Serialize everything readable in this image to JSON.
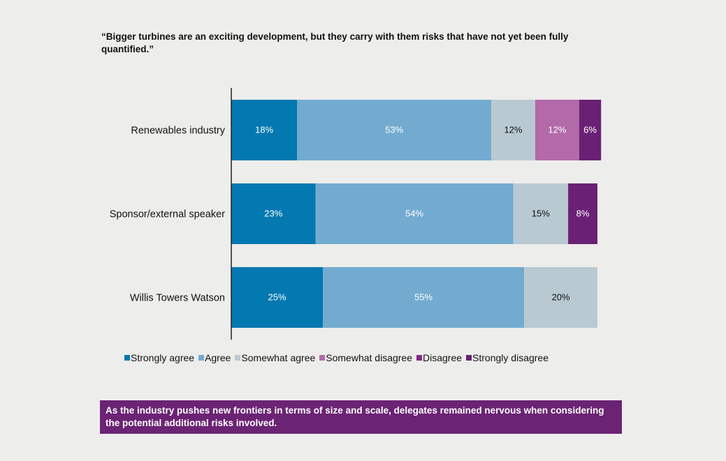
{
  "title": "“Bigger turbines are an exciting development, but they carry with them risks that have not yet been fully quantified.”",
  "caption": "As the industry pushes new frontiers in terms of size and scale, delegates remained nervous when considering the potential additional risks involved.",
  "chart_data": {
    "type": "bar",
    "orientation": "horizontal",
    "stacked": true,
    "title": "“Bigger turbines are an exciting development, but they carry with them risks that have not yet been fully quantified.”",
    "xlabel": "",
    "ylabel": "",
    "xlim": [
      0,
      100
    ],
    "grid": false,
    "legend_position": "bottom",
    "categories": [
      "Renewables industry",
      "Sponsor/external speaker",
      "Willis Towers Watson"
    ],
    "series": [
      {
        "name": "Strongly agree",
        "color": "#0478b0",
        "label_color": "#ffffff",
        "values": [
          18,
          23,
          25
        ]
      },
      {
        "name": "Agree",
        "color": "#73abd0",
        "label_color": "#ffffff",
        "values": [
          53,
          54,
          55
        ]
      },
      {
        "name": "Somewhat agree",
        "color": "#b9c9d2",
        "label_color": "#111111",
        "values": [
          12,
          15,
          20
        ]
      },
      {
        "name": "Somewhat disagree",
        "color": "#b26aa9",
        "label_color": "#ffffff",
        "values": [
          12,
          0,
          0
        ]
      },
      {
        "name": "Disagree",
        "color": "#832a84",
        "label_color": "#ffffff",
        "values": [
          0,
          0,
          0
        ]
      },
      {
        "name": "Strongly disagree",
        "color": "#6a2074",
        "label_color": "#ffffff",
        "values": [
          6,
          8,
          0
        ]
      }
    ]
  }
}
